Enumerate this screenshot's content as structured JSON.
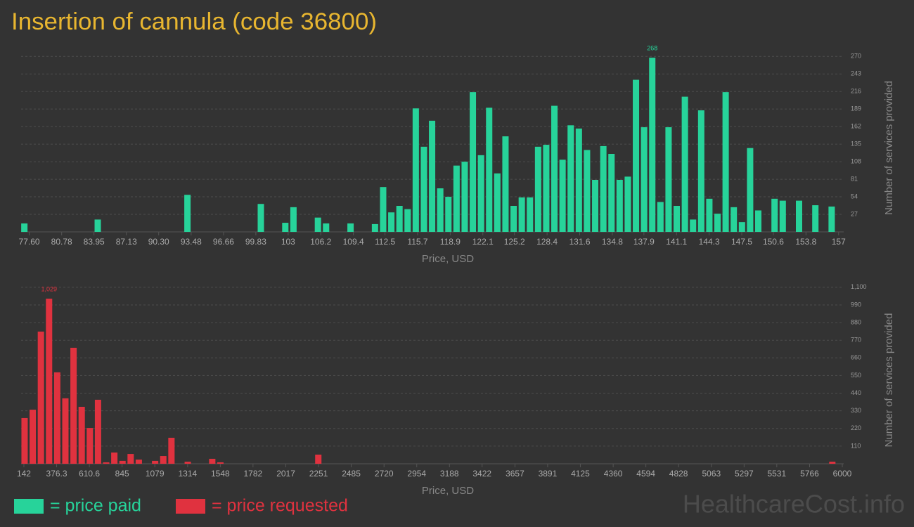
{
  "title": "Insertion of cannula (code 36800)",
  "watermark": "HealthcareCost.info",
  "chart_data": [
    {
      "type": "bar",
      "xlabel": "Price, USD",
      "ylabel": "Number of services provided",
      "xlim": [
        76.8,
        157.5
      ],
      "ylim": [
        0,
        280
      ],
      "xticks": [
        {
          "value": 77.6,
          "label": "77.60"
        },
        80.78,
        83.95,
        87.13,
        {
          "value": 90.3,
          "label": "90.30"
        },
        93.48,
        96.66,
        99.83,
        103,
        106.2,
        109.4,
        112.5,
        115.7,
        118.9,
        122.1,
        125.2,
        128.4,
        131.6,
        134.8,
        137.9,
        141.1,
        144.3,
        147.5,
        150.6,
        153.8,
        157
      ],
      "yticks": [
        27,
        54,
        81,
        108,
        135,
        162,
        189,
        216,
        243,
        270
      ],
      "grid": true,
      "series": [
        {
          "name": "= price paid",
          "color": "#27d39a",
          "x": [
            77.12,
            84.32,
            93.12,
            100.32,
            102.72,
            103.52,
            105.92,
            106.72,
            109.12,
            111.52,
            112.32,
            113.12,
            113.92,
            114.72,
            115.52,
            116.32,
            117.12,
            117.92,
            118.72,
            119.52,
            120.32,
            121.12,
            121.92,
            122.72,
            123.52,
            124.32,
            125.12,
            125.92,
            126.72,
            127.52,
            128.32,
            129.12,
            129.92,
            130.72,
            131.52,
            132.32,
            133.12,
            133.92,
            134.72,
            135.52,
            136.32,
            137.12,
            137.92,
            138.72,
            139.52,
            140.32,
            141.12,
            141.92,
            142.72,
            143.52,
            144.32,
            145.12,
            145.92,
            146.72,
            147.52,
            148.32,
            149.12,
            150.72,
            151.52,
            153.12,
            154.72,
            156.32
          ],
          "values": [
            13,
            19,
            57,
            43,
            14,
            38,
            22,
            13,
            13,
            12,
            69,
            30,
            40,
            35,
            190,
            131,
            171,
            67,
            54,
            102,
            108,
            215,
            118,
            191,
            90,
            147,
            40,
            53,
            53,
            131,
            134,
            194,
            111,
            164,
            159,
            126,
            80,
            132,
            120,
            80,
            85,
            234,
            161,
            268,
            46,
            161,
            40,
            208,
            19,
            187,
            51,
            28,
            215,
            38,
            15,
            129,
            33,
            51,
            48,
            48,
            41,
            39
          ],
          "value_labels": [
            null,
            null,
            null,
            null,
            null,
            null,
            null,
            null,
            null,
            null,
            null,
            null,
            null,
            null,
            null,
            null,
            null,
            null,
            null,
            null,
            null,
            null,
            null,
            null,
            null,
            null,
            null,
            null,
            null,
            null,
            null,
            null,
            null,
            null,
            null,
            null,
            null,
            null,
            null,
            null,
            null,
            null,
            null,
            "268",
            null,
            null,
            null,
            null,
            null,
            null,
            null,
            null,
            null,
            null,
            null,
            null,
            null,
            null,
            null,
            null,
            null,
            null
          ]
        }
      ]
    },
    {
      "type": "bar",
      "xlabel": "Price, USD",
      "ylabel": "Number of services provided",
      "xlim": [
        122,
        6010
      ],
      "ylim": [
        0,
        1130
      ],
      "xticks": [
        142,
        376.3,
        610.6,
        845,
        1079,
        1314,
        1548,
        1782,
        2017,
        2251,
        2485,
        2720,
        2954,
        3188,
        3422,
        3657,
        3891,
        4125,
        4360,
        4594,
        4828,
        5063,
        5297,
        5531,
        5766,
        6000
      ],
      "yticks": [
        110,
        220,
        330,
        440,
        550,
        660,
        770,
        880,
        990,
        {
          "value": 1100,
          "label": "1,100"
        }
      ],
      "grid": true,
      "series": [
        {
          "name": "= price requested",
          "color": "#e0323f",
          "x": [
            147,
            205.4,
            263.8,
            322.2,
            380.6,
            439,
            497.4,
            555.8,
            614.2,
            672.6,
            731,
            789.4,
            847.8,
            906.2,
            964.6,
            1081.4,
            1139.8,
            1198.2,
            1315,
            1490.2,
            1548.6,
            2249.4,
            5928.6
          ],
          "values": [
            285,
            337,
            824,
            1029,
            570,
            408,
            723,
            355,
            223,
            399,
            9,
            70,
            18,
            61,
            26,
            18,
            48,
            162,
            13,
            31,
            9,
            57,
            13
          ],
          "value_labels": [
            null,
            null,
            null,
            "1,029",
            null,
            null,
            null,
            null,
            null,
            null,
            null,
            null,
            null,
            null,
            null,
            null,
            null,
            null,
            null,
            null,
            null,
            null,
            null
          ]
        }
      ]
    }
  ]
}
